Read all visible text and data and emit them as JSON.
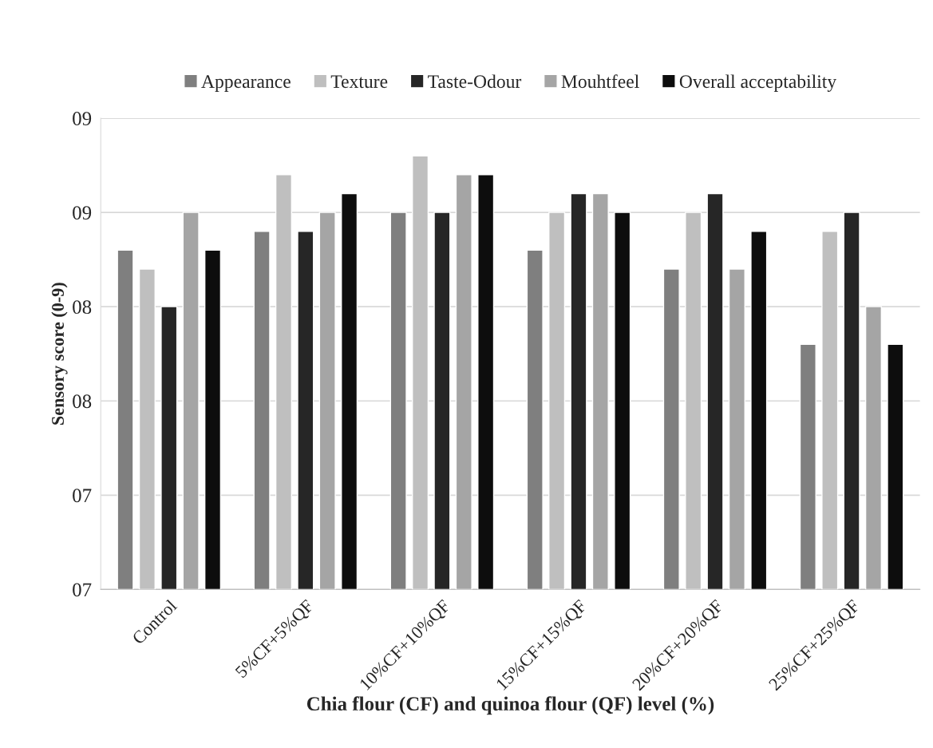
{
  "chart_data": {
    "type": "bar",
    "xlabel": "Chia flour (CF) and quinoa flour (QF) level (%)",
    "ylabel": "Sensory score (0-9)",
    "categories": [
      "Control",
      "5%CF+5%QF",
      "10%CF+10%QF",
      "15%CF+15%QF",
      "20%CF+20%QF",
      "25%CF+25%QF"
    ],
    "series": [
      {
        "name": "Appearance",
        "color": "#7f7f7f",
        "values": [
          8.3,
          8.4,
          8.5,
          8.3,
          8.2,
          7.8
        ]
      },
      {
        "name": "Texture",
        "color": "#bfbfbf",
        "values": [
          8.2,
          8.7,
          8.8,
          8.5,
          8.5,
          8.4
        ]
      },
      {
        "name": "Taste-Odour",
        "color": "#262626",
        "values": [
          8.0,
          8.4,
          8.5,
          8.6,
          8.6,
          8.5
        ]
      },
      {
        "name": "Mouhtfeel",
        "color": "#a5a5a5",
        "values": [
          8.5,
          8.5,
          8.7,
          8.6,
          8.2,
          8.0
        ]
      },
      {
        "name": "Overall acceptability",
        "color": "#0d0d0d",
        "values": [
          8.3,
          8.6,
          8.7,
          8.5,
          8.4,
          7.8
        ]
      }
    ],
    "ylim": [
      6.5,
      9.0
    ],
    "yticks": [
      {
        "value": 6.5,
        "label": "07"
      },
      {
        "value": 7.0,
        "label": "07"
      },
      {
        "value": 7.5,
        "label": "08"
      },
      {
        "value": 8.0,
        "label": "08"
      },
      {
        "value": 8.5,
        "label": "09"
      },
      {
        "value": 9.0,
        "label": "09"
      }
    ],
    "grid": "y",
    "legend": "top"
  }
}
